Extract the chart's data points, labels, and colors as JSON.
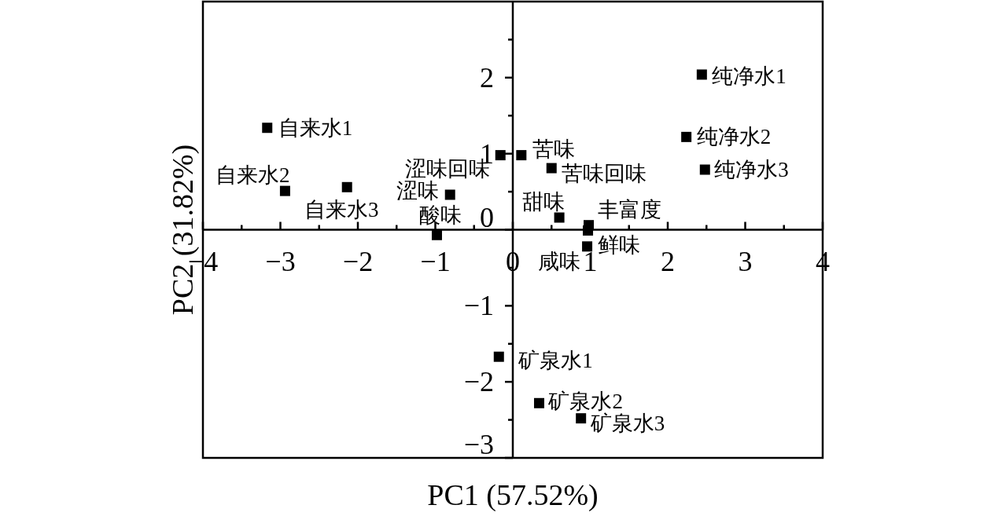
{
  "chart_data": {
    "type": "scatter",
    "xlabel": "PC1 (57.52%)",
    "ylabel": "PC2 (31.82%)",
    "xlim": [
      -4,
      4
    ],
    "ylim": [
      -3,
      3
    ],
    "xticks": [
      -4,
      {
        "value": -3.5,
        "label": null
      },
      -3,
      {
        "value": -2.5,
        "label": null
      },
      -2,
      {
        "value": -1.5,
        "label": null
      },
      -1,
      {
        "value": -0.5,
        "label": null
      },
      0,
      {
        "value": 0.5,
        "label": null
      },
      1,
      {
        "value": 1.5,
        "label": null
      },
      2,
      {
        "value": 2.5,
        "label": null
      },
      3,
      {
        "value": 3.5,
        "label": null
      },
      4
    ],
    "yticks": [
      -3,
      {
        "value": -2.5,
        "label": null
      },
      -2,
      {
        "value": -1.5,
        "label": null
      },
      -1,
      {
        "value": -0.5,
        "label": null
      },
      0,
      {
        "value": 0.5,
        "label": null
      },
      1,
      {
        "value": 1.5,
        "label": null
      },
      2,
      {
        "value": 2.5,
        "label": null
      }
    ],
    "marker": "square",
    "series": [
      {
        "color": "#000000",
        "x": [
          -3.17,
          -2.94,
          -2.14,
          -0.16,
          0.11,
          -0.81,
          -0.98,
          0.5,
          0.6,
          0.98,
          0.97,
          0.96,
          2.44,
          2.24,
          2.48,
          -0.18,
          0.34,
          0.88
        ],
        "values": [
          1.34,
          0.51,
          0.56,
          0.98,
          0.98,
          0.46,
          -0.07,
          0.81,
          0.16,
          0.06,
          -0.01,
          -0.22,
          2.04,
          1.22,
          0.79,
          -1.67,
          -2.28,
          -2.48
        ]
      }
    ],
    "annotations": [
      {
        "text": "自来水1",
        "x": -3.17,
        "y": 1.34
      },
      {
        "text": "自来水2",
        "x": -2.94,
        "y": 0.51
      },
      {
        "text": "自来水3",
        "x": -2.14,
        "y": 0.56
      },
      {
        "text": "涩味回味",
        "x": -0.16,
        "y": 0.98
      },
      {
        "text": "苦味",
        "x": 0.11,
        "y": 0.98
      },
      {
        "text": "涩味",
        "x": -0.81,
        "y": 0.46
      },
      {
        "text": "酸味",
        "x": -0.98,
        "y": -0.07
      },
      {
        "text": "苦味回味",
        "x": 0.5,
        "y": 0.81
      },
      {
        "text": "甜味",
        "x": 0.6,
        "y": 0.16
      },
      {
        "text": "丰富度",
        "x": 0.98,
        "y": 0.06
      },
      {
        "text": "咸味",
        "x": 0.97,
        "y": -0.01
      },
      {
        "text": "鲜味",
        "x": 0.96,
        "y": -0.22
      },
      {
        "text": "纯净水1",
        "x": 2.44,
        "y": 2.04
      },
      {
        "text": "纯净水2",
        "x": 2.24,
        "y": 1.22
      },
      {
        "text": "纯净水3",
        "x": 2.48,
        "y": 0.79
      },
      {
        "text": "矿泉水1",
        "x": -0.18,
        "y": -1.67
      },
      {
        "text": "矿泉水2",
        "x": 0.34,
        "y": -2.28
      },
      {
        "text": "矿泉水3",
        "x": 0.88,
        "y": -2.48
      }
    ]
  }
}
